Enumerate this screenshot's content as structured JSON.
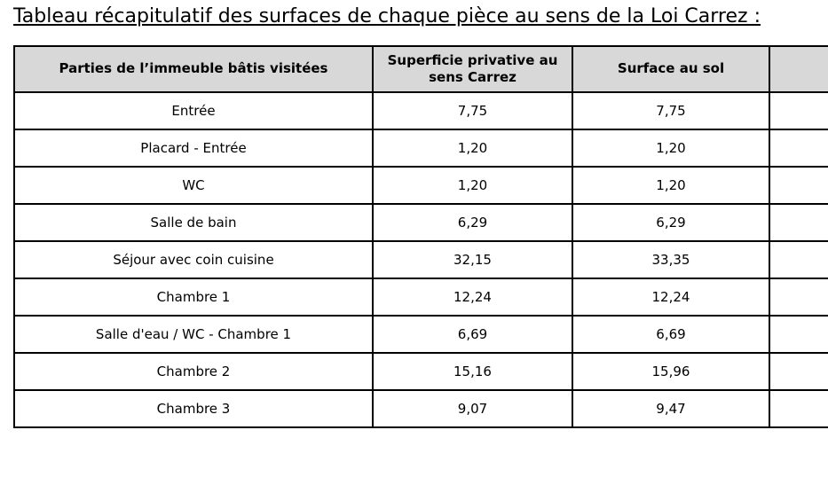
{
  "title": "Tableau récapitulatif des surfaces de chaque pièce au sens de la Loi Carrez :",
  "table": {
    "columns": [
      "Parties de l’immeuble bâtis visitées",
      "Superficie privative au sens Carrez",
      "Surface au sol",
      ""
    ],
    "rows": [
      {
        "room": "Entrée",
        "carrez": "7,75",
        "floor_area": "7,75",
        "extra": ""
      },
      {
        "room": "Placard - Entrée",
        "carrez": "1,20",
        "floor_area": "1,20",
        "extra": ""
      },
      {
        "room": "WC",
        "carrez": "1,20",
        "floor_area": "1,20",
        "extra": ""
      },
      {
        "room": "Salle de bain",
        "carrez": "6,29",
        "floor_area": "6,29",
        "extra": ""
      },
      {
        "room": "Séjour avec coin cuisine",
        "carrez": "32,15",
        "floor_area": "33,35",
        "extra": ""
      },
      {
        "room": "Chambre 1",
        "carrez": "12,24",
        "floor_area": "12,24",
        "extra": ""
      },
      {
        "room": "Salle d'eau / WC - Chambre 1",
        "carrez": "6,69",
        "floor_area": "6,69",
        "extra": ""
      },
      {
        "room": "Chambre 2",
        "carrez": "15,16",
        "floor_area": "15,96",
        "extra": ""
      },
      {
        "room": "Chambre 3",
        "carrez": "9,07",
        "floor_area": "9,47",
        "extra": ""
      }
    ]
  },
  "colors": {
    "page_bg": "#ffffff",
    "text": "#000000",
    "border": "#000000",
    "header_bg": "#d8d8d8"
  }
}
